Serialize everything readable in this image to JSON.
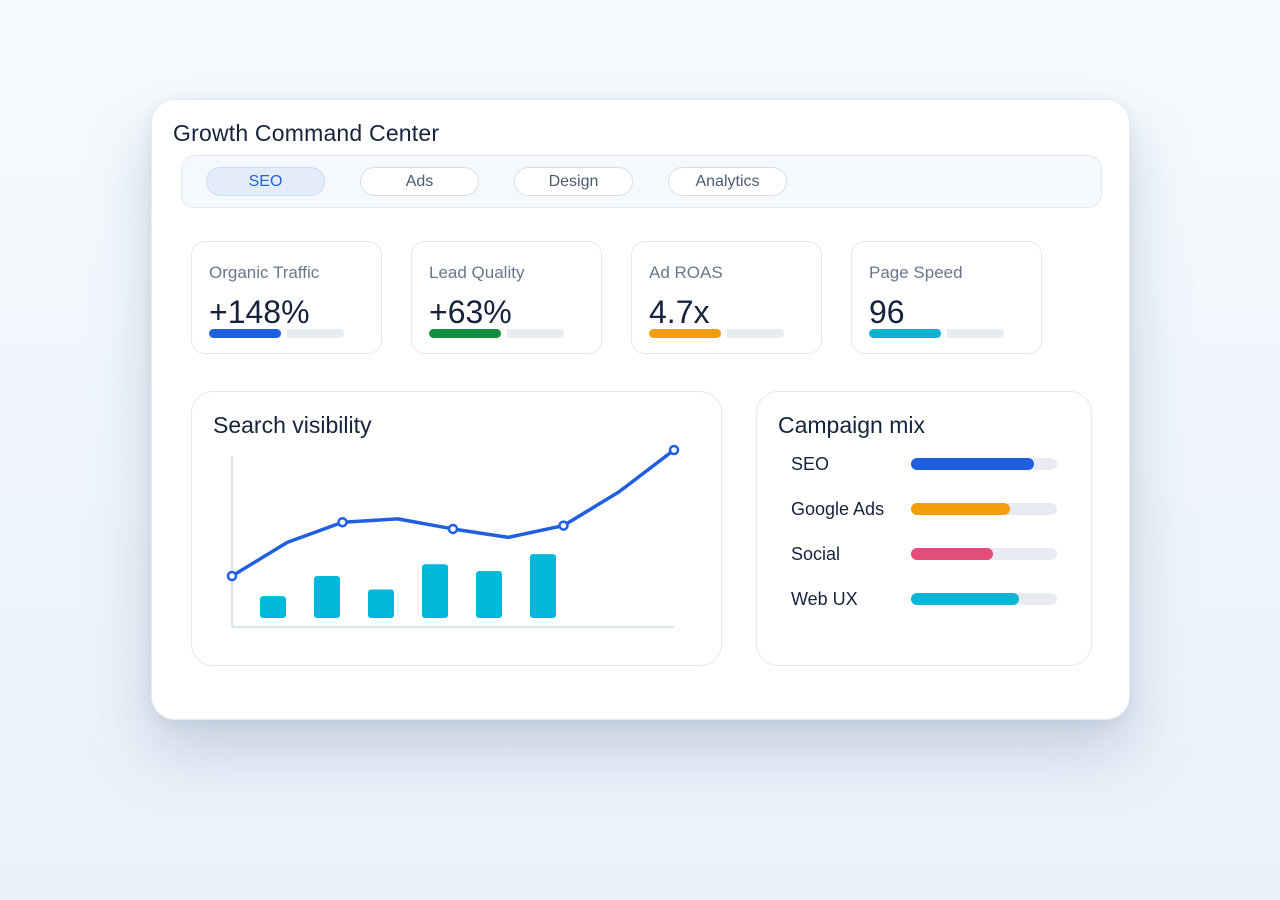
{
  "window": {
    "title": "Growth Command Center"
  },
  "tabs": [
    {
      "label": "SEO",
      "active": true
    },
    {
      "label": "Ads",
      "active": false
    },
    {
      "label": "Design",
      "active": false
    },
    {
      "label": "Analytics",
      "active": false
    }
  ],
  "kpis": [
    {
      "label": "Organic Traffic",
      "value": "+148%",
      "color": "#1f5fe0",
      "progress": 0.53
    },
    {
      "label": "Lead Quality",
      "value": "+63%",
      "color": "#13903f",
      "progress": 0.53
    },
    {
      "label": "Ad ROAS",
      "value": "4.7x",
      "color": "#f29d0c",
      "progress": 0.53
    },
    {
      "label": "Page Speed",
      "value": "96",
      "color": "#0cb3cf",
      "progress": 0.53
    }
  ],
  "visibility": {
    "title": "Search visibility",
    "chart_data": {
      "type": "line",
      "line": {
        "color": "#1f5fe0",
        "values": [
          25,
          45,
          57,
          59,
          53,
          48,
          55,
          75,
          100
        ]
      },
      "markers_at": [
        0,
        2,
        4,
        6,
        8
      ],
      "bars": {
        "color": "#00b8d9",
        "values": [
          13,
          25,
          17,
          32,
          28,
          38
        ]
      }
    }
  },
  "mix": {
    "title": "Campaign mix",
    "chart_data": {
      "type": "bar",
      "categories": [
        "SEO",
        "Google Ads",
        "Social",
        "Web UX"
      ],
      "values": [
        0.84,
        0.68,
        0.56,
        0.74
      ],
      "colors": [
        "#1f5fe0",
        "#f59e0b",
        "#e44d7a",
        "#06b6d4"
      ]
    }
  }
}
